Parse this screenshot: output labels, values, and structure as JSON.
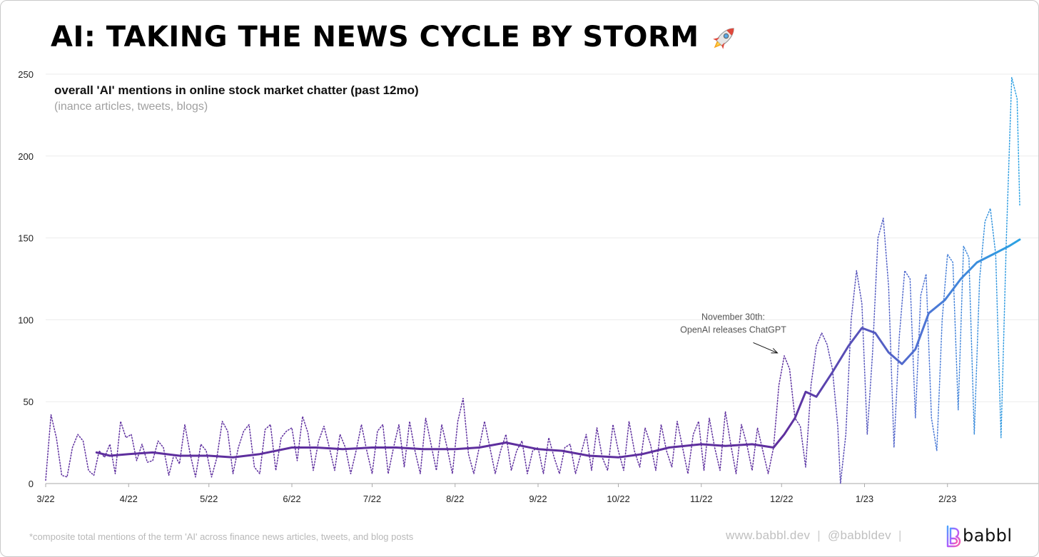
{
  "title": "AI: TAKING THE NEWS CYCLE BY STORM",
  "title_icon": "rocket-icon",
  "subtitle": "overall 'AI' mentions in online stock market chatter (past 12mo)",
  "subsubtitle": "(inance articles, tweets, blogs)",
  "footnote": "*composite total mentions of the term 'AI' across finance news articles, tweets, and blog posts",
  "footer": {
    "website": "www.babbl.dev",
    "separator": "|",
    "handle": "@babbldev",
    "brand": "babbl",
    "logo_icon": "babbl-logo-icon"
  },
  "colors": {
    "purple": "#5e2f9e",
    "blue": "#2ba3e3",
    "grid": "#ebebeb",
    "axis": "#999999"
  },
  "chart_data": {
    "type": "line",
    "title": "overall 'AI' mentions in online stock market chatter (past 12mo)",
    "xlabel": "",
    "ylabel": "",
    "ylim": [
      0,
      250
    ],
    "yticks": [
      0,
      50,
      100,
      150,
      200,
      250
    ],
    "x_ticks": [
      "3/22",
      "4/22",
      "5/22",
      "6/22",
      "7/22",
      "8/22",
      "9/22",
      "10/22",
      "11/22",
      "12/22",
      "1/23",
      "2/23"
    ],
    "x_start": "2022-03-01",
    "x_end": "2023-02-28",
    "grid": true,
    "legend": "none",
    "series": [
      {
        "style": "dotted",
        "note": "daily mentions",
        "points": [
          [
            "2022-03-01",
            2
          ],
          [
            "2022-03-03",
            42
          ],
          [
            "2022-03-05",
            28
          ],
          [
            "2022-03-07",
            5
          ],
          [
            "2022-03-09",
            4
          ],
          [
            "2022-03-11",
            22
          ],
          [
            "2022-03-13",
            30
          ],
          [
            "2022-03-15",
            26
          ],
          [
            "2022-03-17",
            8
          ],
          [
            "2022-03-19",
            5
          ],
          [
            "2022-03-21",
            20
          ],
          [
            "2022-03-23",
            16
          ],
          [
            "2022-03-25",
            24
          ],
          [
            "2022-03-27",
            6
          ],
          [
            "2022-03-29",
            38
          ],
          [
            "2022-03-31",
            28
          ],
          [
            "2022-04-02",
            30
          ],
          [
            "2022-04-04",
            14
          ],
          [
            "2022-04-06",
            24
          ],
          [
            "2022-04-08",
            13
          ],
          [
            "2022-04-10",
            14
          ],
          [
            "2022-04-12",
            26
          ],
          [
            "2022-04-14",
            22
          ],
          [
            "2022-04-16",
            5
          ],
          [
            "2022-04-18",
            18
          ],
          [
            "2022-04-20",
            12
          ],
          [
            "2022-04-22",
            36
          ],
          [
            "2022-04-24",
            18
          ],
          [
            "2022-04-26",
            4
          ],
          [
            "2022-04-28",
            24
          ],
          [
            "2022-04-30",
            20
          ],
          [
            "2022-05-02",
            4
          ],
          [
            "2022-05-04",
            16
          ],
          [
            "2022-05-06",
            38
          ],
          [
            "2022-05-08",
            32
          ],
          [
            "2022-05-10",
            6
          ],
          [
            "2022-05-12",
            22
          ],
          [
            "2022-05-14",
            32
          ],
          [
            "2022-05-16",
            36
          ],
          [
            "2022-05-18",
            10
          ],
          [
            "2022-05-20",
            6
          ],
          [
            "2022-05-22",
            33
          ],
          [
            "2022-05-24",
            36
          ],
          [
            "2022-05-26",
            8
          ],
          [
            "2022-05-28",
            28
          ],
          [
            "2022-05-30",
            32
          ],
          [
            "2022-06-01",
            34
          ],
          [
            "2022-06-03",
            14
          ],
          [
            "2022-06-05",
            41
          ],
          [
            "2022-06-07",
            31
          ],
          [
            "2022-06-09",
            8
          ],
          [
            "2022-06-11",
            26
          ],
          [
            "2022-06-13",
            35
          ],
          [
            "2022-06-15",
            22
          ],
          [
            "2022-06-17",
            8
          ],
          [
            "2022-06-19",
            30
          ],
          [
            "2022-06-21",
            22
          ],
          [
            "2022-06-23",
            6
          ],
          [
            "2022-06-25",
            20
          ],
          [
            "2022-06-27",
            36
          ],
          [
            "2022-06-29",
            20
          ],
          [
            "2022-07-01",
            6
          ],
          [
            "2022-07-03",
            32
          ],
          [
            "2022-07-05",
            36
          ],
          [
            "2022-07-07",
            6
          ],
          [
            "2022-07-09",
            22
          ],
          [
            "2022-07-11",
            36
          ],
          [
            "2022-07-13",
            10
          ],
          [
            "2022-07-15",
            38
          ],
          [
            "2022-07-17",
            20
          ],
          [
            "2022-07-19",
            6
          ],
          [
            "2022-07-21",
            40
          ],
          [
            "2022-07-23",
            24
          ],
          [
            "2022-07-25",
            8
          ],
          [
            "2022-07-27",
            36
          ],
          [
            "2022-07-29",
            22
          ],
          [
            "2022-07-31",
            6
          ],
          [
            "2022-08-02",
            38
          ],
          [
            "2022-08-04",
            52
          ],
          [
            "2022-08-06",
            18
          ],
          [
            "2022-08-08",
            6
          ],
          [
            "2022-08-10",
            22
          ],
          [
            "2022-08-12",
            38
          ],
          [
            "2022-08-14",
            22
          ],
          [
            "2022-08-16",
            6
          ],
          [
            "2022-08-18",
            20
          ],
          [
            "2022-08-20",
            30
          ],
          [
            "2022-08-22",
            8
          ],
          [
            "2022-08-24",
            20
          ],
          [
            "2022-08-26",
            26
          ],
          [
            "2022-08-28",
            6
          ],
          [
            "2022-08-30",
            20
          ],
          [
            "2022-09-01",
            22
          ],
          [
            "2022-09-03",
            6
          ],
          [
            "2022-09-05",
            28
          ],
          [
            "2022-09-07",
            16
          ],
          [
            "2022-09-09",
            6
          ],
          [
            "2022-09-11",
            22
          ],
          [
            "2022-09-13",
            24
          ],
          [
            "2022-09-15",
            6
          ],
          [
            "2022-09-17",
            18
          ],
          [
            "2022-09-19",
            30
          ],
          [
            "2022-09-21",
            8
          ],
          [
            "2022-09-23",
            34
          ],
          [
            "2022-09-25",
            16
          ],
          [
            "2022-09-27",
            8
          ],
          [
            "2022-09-29",
            36
          ],
          [
            "2022-10-01",
            20
          ],
          [
            "2022-10-03",
            8
          ],
          [
            "2022-10-05",
            38
          ],
          [
            "2022-10-07",
            20
          ],
          [
            "2022-10-09",
            10
          ],
          [
            "2022-10-11",
            34
          ],
          [
            "2022-10-13",
            24
          ],
          [
            "2022-10-15",
            8
          ],
          [
            "2022-10-17",
            36
          ],
          [
            "2022-10-19",
            20
          ],
          [
            "2022-10-21",
            10
          ],
          [
            "2022-10-23",
            38
          ],
          [
            "2022-10-25",
            22
          ],
          [
            "2022-10-27",
            6
          ],
          [
            "2022-10-29",
            30
          ],
          [
            "2022-10-31",
            38
          ],
          [
            "2022-11-02",
            8
          ],
          [
            "2022-11-04",
            40
          ],
          [
            "2022-11-06",
            22
          ],
          [
            "2022-11-08",
            8
          ],
          [
            "2022-11-10",
            44
          ],
          [
            "2022-11-12",
            24
          ],
          [
            "2022-11-14",
            6
          ],
          [
            "2022-11-16",
            36
          ],
          [
            "2022-11-18",
            24
          ],
          [
            "2022-11-20",
            8
          ],
          [
            "2022-11-22",
            34
          ],
          [
            "2022-11-24",
            20
          ],
          [
            "2022-11-26",
            6
          ],
          [
            "2022-11-28",
            22
          ],
          [
            "2022-11-30",
            60
          ],
          [
            "2022-12-02",
            78
          ],
          [
            "2022-12-04",
            70
          ],
          [
            "2022-12-06",
            40
          ],
          [
            "2022-12-08",
            35
          ],
          [
            "2022-12-10",
            10
          ],
          [
            "2022-12-12",
            60
          ],
          [
            "2022-12-14",
            84
          ],
          [
            "2022-12-16",
            92
          ],
          [
            "2022-12-18",
            85
          ],
          [
            "2022-12-20",
            70
          ],
          [
            "2022-12-22",
            35
          ],
          [
            "2022-12-23",
            0
          ],
          [
            "2022-12-25",
            30
          ],
          [
            "2022-12-27",
            100
          ],
          [
            "2022-12-29",
            130
          ],
          [
            "2022-12-31",
            110
          ],
          [
            "2023-01-02",
            30
          ],
          [
            "2023-01-04",
            80
          ],
          [
            "2023-01-06",
            150
          ],
          [
            "2023-01-08",
            162
          ],
          [
            "2023-01-10",
            120
          ],
          [
            "2023-01-12",
            22
          ],
          [
            "2023-01-14",
            90
          ],
          [
            "2023-01-16",
            130
          ],
          [
            "2023-01-18",
            125
          ],
          [
            "2023-01-20",
            40
          ],
          [
            "2023-01-22",
            115
          ],
          [
            "2023-01-24",
            128
          ],
          [
            "2023-01-26",
            40
          ],
          [
            "2023-01-28",
            20
          ],
          [
            "2023-01-30",
            100
          ],
          [
            "2023-02-01",
            140
          ],
          [
            "2023-02-03",
            135
          ],
          [
            "2023-02-05",
            45
          ],
          [
            "2023-02-07",
            145
          ],
          [
            "2023-02-09",
            138
          ],
          [
            "2023-02-11",
            30
          ],
          [
            "2023-02-13",
            125
          ],
          [
            "2023-02-15",
            160
          ],
          [
            "2023-02-17",
            168
          ],
          [
            "2023-02-19",
            140
          ],
          [
            "2023-02-21",
            28
          ],
          [
            "2023-02-23",
            150
          ],
          [
            "2023-02-25",
            248
          ],
          [
            "2023-02-27",
            235
          ],
          [
            "2023-02-28",
            170
          ]
        ]
      },
      {
        "style": "solid",
        "note": "moving average",
        "points": [
          [
            "2022-03-20",
            19
          ],
          [
            "2022-03-25",
            17
          ],
          [
            "2022-04-01",
            18
          ],
          [
            "2022-04-10",
            19
          ],
          [
            "2022-04-20",
            17
          ],
          [
            "2022-05-01",
            17
          ],
          [
            "2022-05-10",
            16
          ],
          [
            "2022-05-20",
            18
          ],
          [
            "2022-06-01",
            22
          ],
          [
            "2022-06-10",
            22
          ],
          [
            "2022-06-20",
            21
          ],
          [
            "2022-07-01",
            22
          ],
          [
            "2022-07-10",
            22
          ],
          [
            "2022-07-20",
            21
          ],
          [
            "2022-08-01",
            21
          ],
          [
            "2022-08-10",
            22
          ],
          [
            "2022-08-20",
            25
          ],
          [
            "2022-09-01",
            21
          ],
          [
            "2022-09-10",
            20
          ],
          [
            "2022-09-20",
            17
          ],
          [
            "2022-10-01",
            16
          ],
          [
            "2022-10-10",
            18
          ],
          [
            "2022-10-20",
            22
          ],
          [
            "2022-11-01",
            24
          ],
          [
            "2022-11-10",
            23
          ],
          [
            "2022-11-20",
            24
          ],
          [
            "2022-11-28",
            22
          ],
          [
            "2022-12-02",
            30
          ],
          [
            "2022-12-06",
            40
          ],
          [
            "2022-12-10",
            56
          ],
          [
            "2022-12-14",
            53
          ],
          [
            "2022-12-20",
            68
          ],
          [
            "2022-12-26",
            84
          ],
          [
            "2022-12-31",
            95
          ],
          [
            "2023-01-05",
            92
          ],
          [
            "2023-01-10",
            80
          ],
          [
            "2023-01-15",
            73
          ],
          [
            "2023-01-20",
            82
          ],
          [
            "2023-01-25",
            104
          ],
          [
            "2023-01-31",
            112
          ],
          [
            "2023-02-06",
            125
          ],
          [
            "2023-02-12",
            135
          ],
          [
            "2023-02-18",
            140
          ],
          [
            "2023-02-24",
            145
          ],
          [
            "2023-02-28",
            149
          ]
        ]
      }
    ],
    "annotations": [
      {
        "text_line1": "November 30th:",
        "text_line2": "OpenAI releases ChatGPT",
        "date": "2022-11-30",
        "value": 78
      }
    ]
  }
}
